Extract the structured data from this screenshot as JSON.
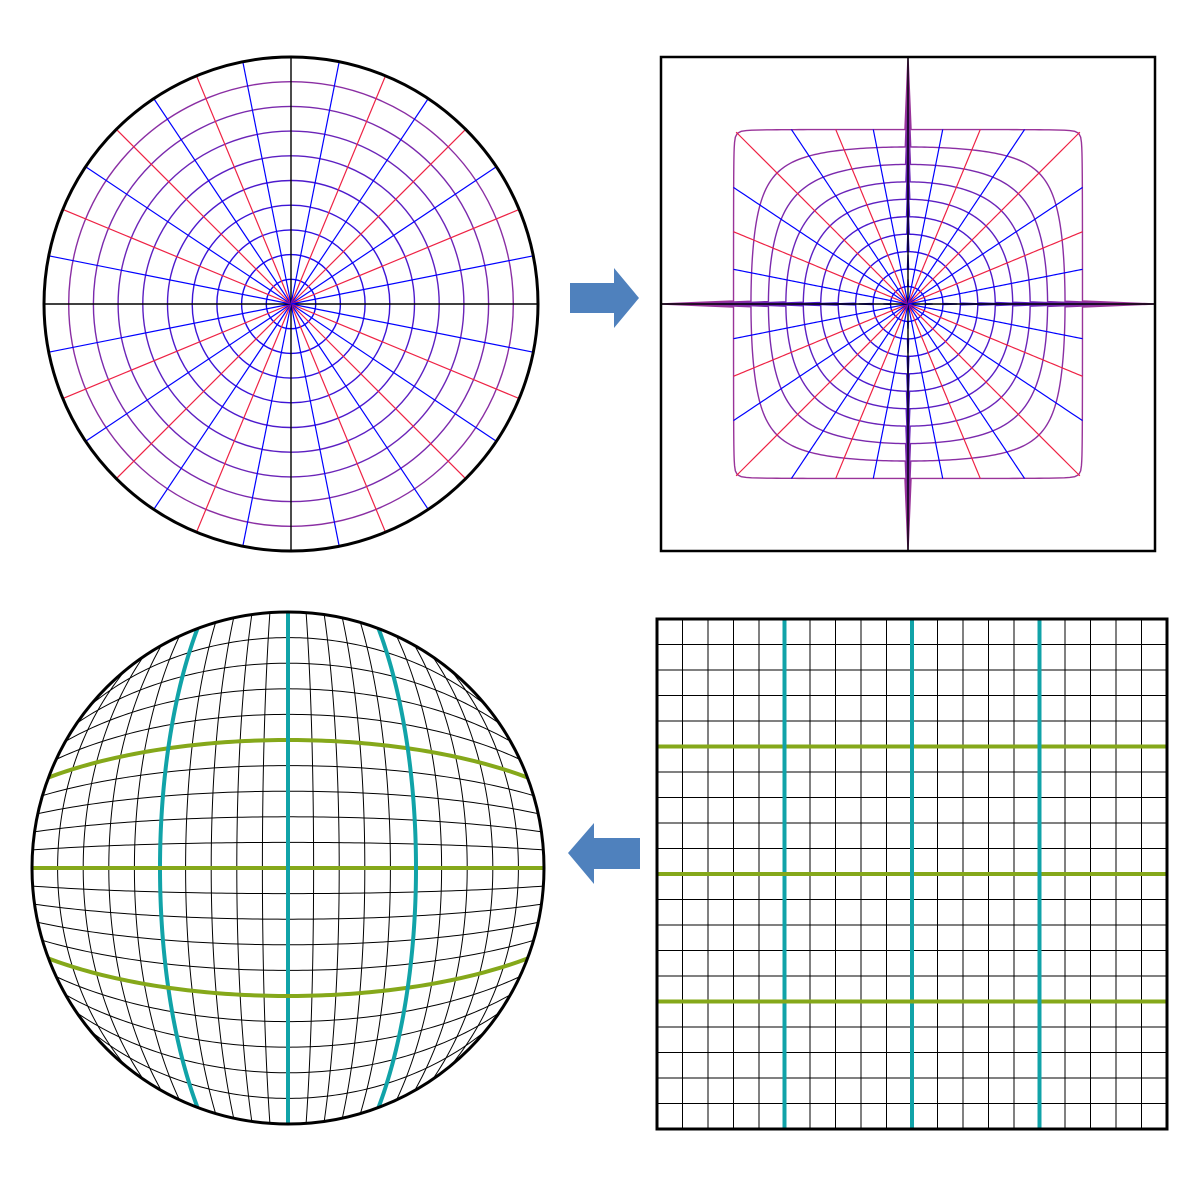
{
  "figure": {
    "panels": [
      {
        "id": "polar-disk",
        "kind": "disk-polar-grid",
        "rings": 10,
        "rays": 32
      },
      {
        "id": "polar-square",
        "kind": "square-mapped-polar-grid",
        "rings": 10,
        "rays": 32
      },
      {
        "id": "square-grid",
        "kind": "square-cartesian-grid",
        "divisions": 20,
        "highlight_divisions": [
          5,
          10,
          15
        ]
      },
      {
        "id": "squircle-disk",
        "kind": "disk-mapped-cartesian-grid",
        "divisions": 20,
        "highlight_divisions": [
          5,
          10,
          15
        ]
      }
    ],
    "arrows": [
      {
        "id": "arrow-right",
        "direction": "right",
        "from": "polar-disk",
        "to": "polar-square"
      },
      {
        "id": "arrow-left",
        "direction": "left",
        "from": "square-grid",
        "to": "squircle-disk"
      }
    ],
    "colors": {
      "ring_outer": "#993399",
      "ring_inner": "#0000ff",
      "ray_red": "#ee2244",
      "ray_blue": "#0000ff",
      "axis": "#000000",
      "outline": "#000000",
      "grid": "#000000",
      "highlight_vertical": "#11a3a8",
      "highlight_horizontal": "#85a81a",
      "arrow": "#4f81bd"
    }
  }
}
